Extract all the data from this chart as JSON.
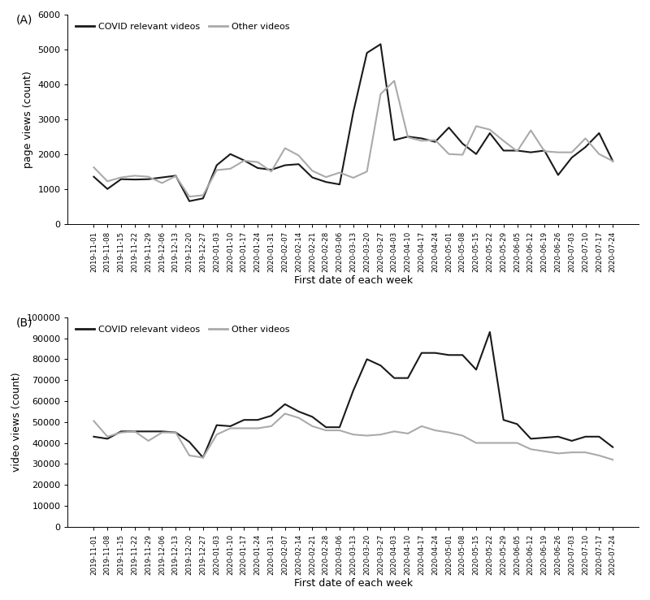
{
  "dates": [
    "2019-11-01",
    "2019-11-08",
    "2019-11-15",
    "2019-11-22",
    "2019-11-29",
    "2019-12-06",
    "2019-12-13",
    "2019-12-20",
    "2019-12-27",
    "2020-01-03",
    "2020-01-10",
    "2020-01-17",
    "2020-01-24",
    "2020-01-31",
    "2020-02-07",
    "2020-02-14",
    "2020-02-21",
    "2020-02-28",
    "2020-03-06",
    "2020-03-13",
    "2020-03-20",
    "2020-03-27",
    "2020-04-03",
    "2020-04-10",
    "2020-04-17",
    "2020-04-24",
    "2020-05-01",
    "2020-05-08",
    "2020-05-15",
    "2020-05-22",
    "2020-05-29",
    "2020-06-05",
    "2020-06-12",
    "2020-06-19",
    "2020-06-26",
    "2020-07-03",
    "2020-07-10",
    "2020-07-17",
    "2020-07-24"
  ],
  "page_covid": [
    1350,
    1000,
    1280,
    1270,
    1280,
    1330,
    1380,
    650,
    730,
    1680,
    2000,
    1820,
    1600,
    1550,
    1680,
    1710,
    1330,
    1200,
    1130,
    3200,
    4900,
    5150,
    2400,
    2500,
    2450,
    2350,
    2760,
    2300,
    2000,
    2600,
    2100,
    2100,
    2050,
    2100,
    1400,
    1900,
    2200,
    2600,
    1800
  ],
  "page_other": [
    1620,
    1220,
    1330,
    1380,
    1350,
    1170,
    1370,
    780,
    820,
    1540,
    1580,
    1810,
    1770,
    1500,
    2170,
    1960,
    1520,
    1340,
    1470,
    1320,
    1500,
    3720,
    4100,
    2480,
    2380,
    2400,
    2000,
    1980,
    2800,
    2700,
    2380,
    2080,
    2680,
    2080,
    2050,
    2050,
    2450,
    2000,
    1800
  ],
  "video_covid": [
    43000,
    42000,
    45500,
    45500,
    45500,
    45500,
    45000,
    40500,
    33000,
    48500,
    48000,
    51000,
    51000,
    53000,
    58500,
    55000,
    52500,
    47500,
    47500,
    65000,
    80000,
    77000,
    71000,
    71000,
    83000,
    83000,
    82000,
    82000,
    75000,
    93000,
    51000,
    49000,
    42000,
    42500,
    43000,
    41000,
    43000,
    43000,
    38000
  ],
  "video_other": [
    50500,
    43000,
    45000,
    45500,
    41000,
    45000,
    45000,
    34000,
    33000,
    44000,
    47000,
    47000,
    47000,
    48000,
    54000,
    52000,
    48000,
    46000,
    46000,
    44000,
    43500,
    44000,
    45500,
    44500,
    48000,
    46000,
    45000,
    43500,
    40000,
    40000,
    40000,
    40000,
    37000,
    36000,
    35000,
    35500,
    35500,
    34000,
    32000
  ],
  "color_covid": "#1a1a1a",
  "color_other": "#aaaaaa",
  "linewidth": 1.5,
  "label_covid": "COVID relevant videos",
  "label_other": "Other videos",
  "xlabel": "First date of each week",
  "ylabel_a": "page views (count)",
  "ylabel_b": "video views (count)",
  "ylim_a": [
    0,
    6000
  ],
  "ylim_b": [
    0,
    100000
  ],
  "yticks_a": [
    0,
    1000,
    2000,
    3000,
    4000,
    5000,
    6000
  ],
  "yticks_b": [
    0,
    10000,
    20000,
    30000,
    40000,
    50000,
    60000,
    70000,
    80000,
    90000,
    100000
  ],
  "panel_labels": [
    "(A)",
    "(B)"
  ],
  "background_color": "#ffffff"
}
